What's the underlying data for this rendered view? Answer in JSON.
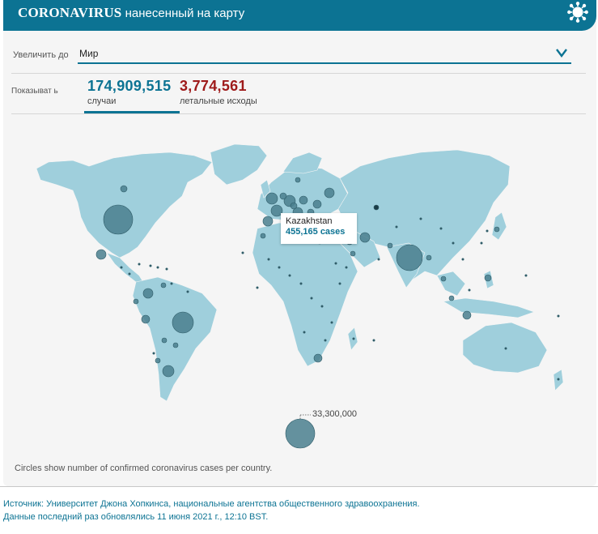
{
  "header": {
    "title_bold": "CORONAVIRUS",
    "title_rest": " нанесенный на карту",
    "icon": "virus-icon"
  },
  "zoom": {
    "label": "Увеличить до",
    "value": "Мир",
    "icon": "chevron-down-icon"
  },
  "stats": {
    "show_label": "Показыват ь",
    "cases": {
      "value": "174,909,515",
      "label": "случаи"
    },
    "deaths": {
      "value": "3,774,561",
      "label": "летальные исходы"
    }
  },
  "map": {
    "tooltip": {
      "name": "Kazakhstan",
      "value": "455,165 cases"
    },
    "legend_value": "33,300,000",
    "caption": "Circles show number of confirmed coronavirus cases per country.",
    "colors": {
      "land": "#9fcfdc",
      "bubble": "#4a7f8e",
      "accent": "#0c7393"
    }
  },
  "footer": {
    "source_line1": "Источник: Университет Джона Хопкинса, национальные агентства общественного здравоохранения.",
    "source_line2": "Данные последний раз обновлялись 11 июня 2021 г., 12:10 BST."
  }
}
